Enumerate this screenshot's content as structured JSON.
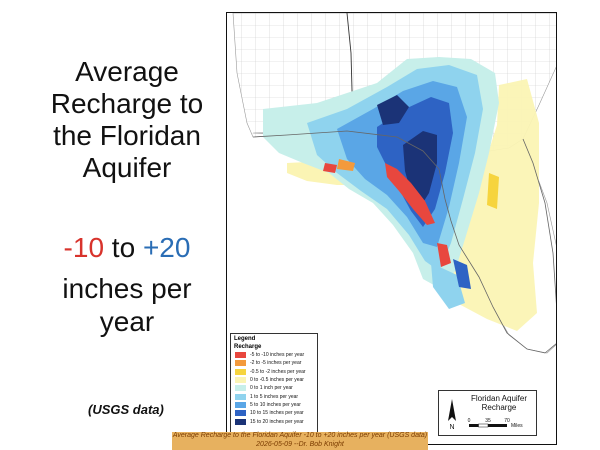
{
  "slide": {
    "title_lines": [
      "Average",
      "Recharge to",
      "the Floridan",
      "Aquifer"
    ],
    "range": {
      "low": "-10",
      "to": " to ",
      "high": "+20"
    },
    "unit_lines": [
      "inches per",
      "year"
    ],
    "source": "(USGS data)"
  },
  "map": {
    "legend": {
      "title": "Legend",
      "subtitle": "Recharge",
      "items": [
        {
          "label": "-5 to -10 inches per year",
          "color": "#e8473e"
        },
        {
          "label": "-2 to -5 inches per year",
          "color": "#f39a3c"
        },
        {
          "label": "-0.5 to -2 inches per year",
          "color": "#f6d43e"
        },
        {
          "label": "0 to -0.5 inches per year",
          "color": "#fbf4b4"
        },
        {
          "label": "0 to 1 inch per year",
          "color": "#c7efea"
        },
        {
          "label": "1 to 5 inches per year",
          "color": "#8fd3ee"
        },
        {
          "label": "5 to 10 inches per year",
          "color": "#5aa6e6"
        },
        {
          "label": "10 to 15 inches per year",
          "color": "#2e63c4"
        },
        {
          "label": "15 to 20 inches per year",
          "color": "#1b3377"
        }
      ]
    },
    "info": {
      "title_lines": [
        "Floridan Aquifer",
        "Recharge"
      ],
      "north_label": "N",
      "scale_ticks": [
        "0",
        "35",
        "70"
      ],
      "scale_unit": "Miles"
    }
  },
  "caption": {
    "line1": "Average Recharge to the Floridan Aquifer -10 to +20 inches per year (USGS data)",
    "line2": "2026-05-09 --Dr. Bob Knight"
  }
}
